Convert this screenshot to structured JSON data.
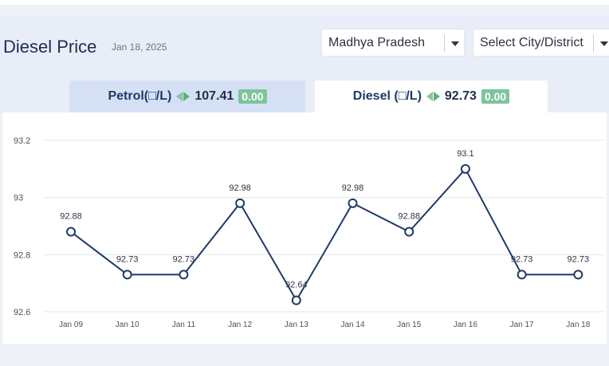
{
  "header": {
    "title": "Diesel Price",
    "date": "Jan 18, 2025",
    "state_select": {
      "value": "Madhya Pradesh"
    },
    "city_select": {
      "value": "Select City/District"
    }
  },
  "tabs": [
    {
      "label": "Petrol(□/L)",
      "price": "107.41",
      "change": "0.00",
      "active": false
    },
    {
      "label": "Diesel (□/L)",
      "price": "92.73",
      "change": "0.00",
      "active": true
    }
  ],
  "colors": {
    "line": "#1f3b66",
    "change_badge": "#7ec49b",
    "arrow": "#5bb07e"
  },
  "icons": {
    "dropdown": "chevron-down-icon",
    "trend": "left-right-arrow-icon"
  },
  "chart_data": {
    "type": "line",
    "categories": [
      "Jan 09",
      "Jan 10",
      "Jan 11",
      "Jan 12",
      "Jan 13",
      "Jan 14",
      "Jan 15",
      "Jan 16",
      "Jan 17",
      "Jan 18"
    ],
    "values": [
      92.88,
      92.73,
      92.73,
      92.98,
      92.64,
      92.98,
      92.88,
      93.1,
      92.73,
      92.73
    ],
    "data_labels": [
      "92.88",
      "92.73",
      "92.73",
      "92.98",
      "92.64",
      "92.98",
      "92.88",
      "93.1",
      "92.73",
      "92.73"
    ],
    "yticks": [
      "92.6",
      "92.8",
      "93",
      "93.2"
    ],
    "ylim": [
      92.6,
      93.2
    ],
    "grid": true,
    "title": "",
    "xlabel": "",
    "ylabel": ""
  }
}
